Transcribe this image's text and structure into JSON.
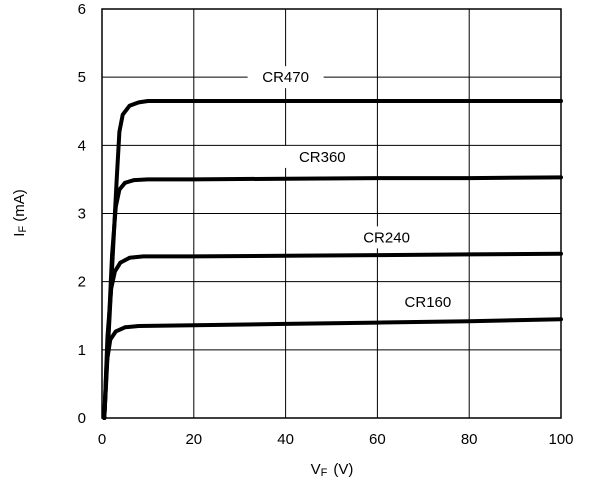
{
  "chart_data": {
    "type": "line",
    "title": "",
    "xlabel": "V",
    "xlabel_subscript": "F",
    "xlabel_unit": "(V)",
    "ylabel": "I",
    "ylabel_subscript": "F",
    "ylabel_unit": "(mA)",
    "xlim": [
      0,
      100
    ],
    "ylim": [
      0,
      6
    ],
    "x_ticks": [
      "0",
      "20",
      "40",
      "60",
      "80",
      "100"
    ],
    "y_ticks": [
      "0",
      "1",
      "2",
      "3",
      "4",
      "5",
      "6"
    ],
    "grid": true,
    "series": [
      {
        "name": "CR470",
        "x": [
          0.5,
          1.5,
          2.5,
          3.2,
          3.8,
          4.5,
          6,
          8,
          10,
          20,
          40,
          60,
          80,
          100
        ],
        "y": [
          0,
          1.3,
          2.6,
          3.5,
          4.2,
          4.45,
          4.58,
          4.63,
          4.65,
          4.65,
          4.65,
          4.65,
          4.65,
          4.65
        ]
      },
      {
        "name": "CR360",
        "x": [
          0.5,
          1.5,
          2.2,
          3,
          3.8,
          5,
          7,
          10,
          20,
          40,
          60,
          80,
          100
        ],
        "y": [
          0,
          1.4,
          2.4,
          3.1,
          3.35,
          3.45,
          3.49,
          3.5,
          3.5,
          3.51,
          3.52,
          3.52,
          3.53
        ]
      },
      {
        "name": "CR240",
        "x": [
          0.5,
          1.2,
          2,
          2.8,
          4,
          6,
          9,
          20,
          40,
          60,
          80,
          100
        ],
        "y": [
          0,
          1.2,
          1.9,
          2.15,
          2.28,
          2.35,
          2.37,
          2.37,
          2.38,
          2.39,
          2.4,
          2.41
        ]
      },
      {
        "name": "CR160",
        "x": [
          0.5,
          1,
          1.8,
          3,
          5,
          8,
          20,
          40,
          60,
          80,
          100
        ],
        "y": [
          0,
          0.8,
          1.15,
          1.27,
          1.33,
          1.35,
          1.36,
          1.38,
          1.4,
          1.42,
          1.45
        ]
      }
    ]
  }
}
